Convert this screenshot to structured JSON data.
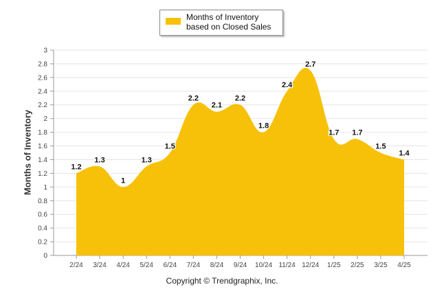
{
  "chart_data": {
    "type": "area",
    "categories": [
      "2/24",
      "3/24",
      "4/24",
      "5/24",
      "6/24",
      "7/24",
      "8/24",
      "9/24",
      "10/24",
      "11/24",
      "12/24",
      "1/25",
      "2/25",
      "3/25",
      "4/25"
    ],
    "series": [
      {
        "name": "Months of Inventory based on Closed Sales",
        "values": [
          1.2,
          1.3,
          1,
          1.3,
          1.5,
          2.2,
          2.1,
          2.2,
          1.8,
          2.4,
          2.7,
          1.7,
          1.7,
          1.5,
          1.4
        ]
      }
    ],
    "data_labels": [
      "1.2",
      "1.3",
      "1",
      "1.3",
      "1.5",
      "2.2",
      "2.1",
      "2.2",
      "1.8",
      "2.4",
      "2.7",
      "1.7",
      "1.7",
      "1.5",
      "1.4"
    ],
    "ylabel": "Months of Inventory",
    "xlabel": "",
    "ylim": [
      0,
      3
    ],
    "yticks": [
      "0",
      "0.2",
      "0.4",
      "0.6",
      "0.8",
      "1",
      "1.2",
      "1.4",
      "1.6",
      "1.8",
      "2",
      "2.2",
      "2.4",
      "2.6",
      "2.8",
      "3"
    ],
    "grid": true,
    "legend_position": "top-center",
    "colors": {
      "fill": "#F7C10A",
      "grid": "#e4e4e4",
      "axis": "#999999"
    }
  },
  "legend": {
    "label": "Months of Inventory based on Closed Sales"
  },
  "footer": {
    "credit": "Copyright © Trendgraphix, Inc."
  }
}
